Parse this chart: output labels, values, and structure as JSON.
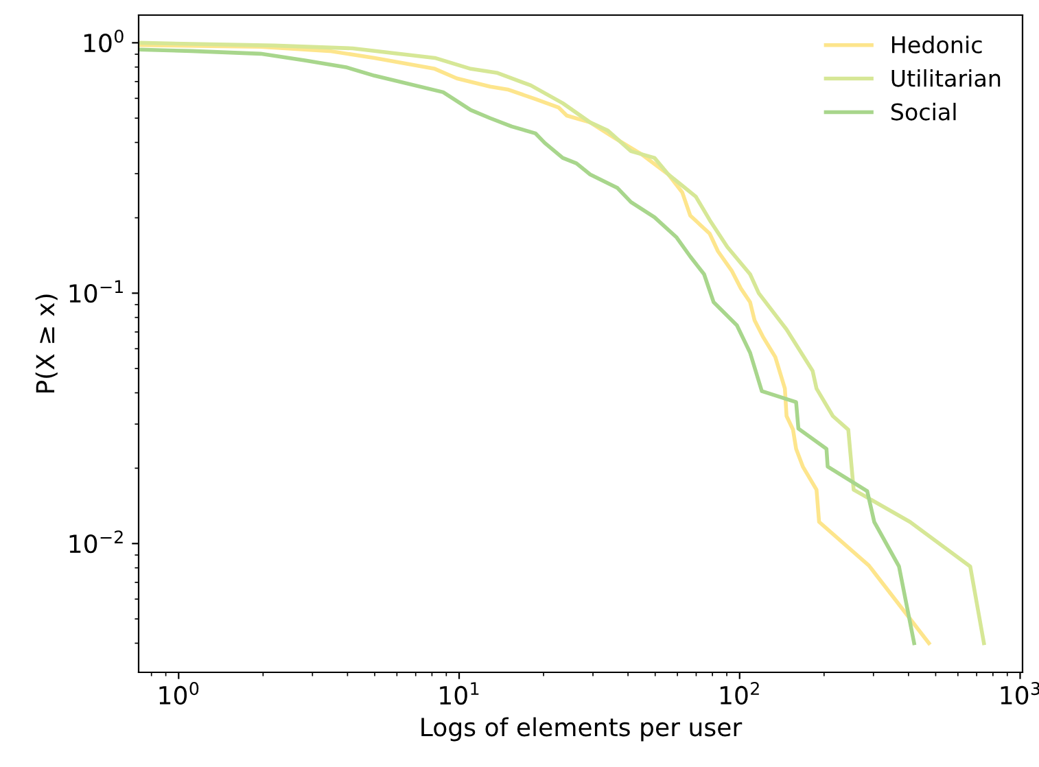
{
  "chart_data": {
    "type": "line",
    "xlabel": "Logs of elements per user",
    "ylabel": "P(X ≥ x)",
    "log": "xy",
    "grid": false,
    "legend": "top right",
    "marker": "none",
    "line_style": "solid",
    "xlim": [
      0.72,
      1020
    ],
    "ylim": [
      0.00306,
      1.29
    ],
    "xticks": [
      {
        "value": 1,
        "label": "10$^{0}$"
      },
      {
        "value": 10,
        "label": "10$^{1}$"
      },
      {
        "value": 100,
        "label": "10$^{2}$"
      },
      {
        "value": 1000,
        "label": "10$^{3}$"
      }
    ],
    "yticks": [
      {
        "value": 1,
        "label": "10$^{0}$"
      },
      {
        "value": 0.1,
        "label": "10$^{−1}$"
      },
      {
        "value": 0.01,
        "label": "10$^{−2}$"
      }
    ],
    "series": [
      {
        "name": "Hedonic",
        "color": "#fde58c",
        "x": [
          0.72,
          1.96,
          3.45,
          4.99,
          8.19,
          9.81,
          12.9,
          14.9,
          18.7,
          22.6,
          24.2,
          29.3,
          35.5,
          44.5,
          55.7,
          62.4,
          66.7,
          78.2,
          83.7,
          93.7,
          101,
          109,
          113,
          121,
          134,
          145,
          147,
          155,
          159,
          168,
          188,
          192,
          289,
          473
        ],
        "values": [
          0.979,
          0.963,
          0.927,
          0.87,
          0.787,
          0.721,
          0.668,
          0.651,
          0.596,
          0.552,
          0.512,
          0.481,
          0.419,
          0.36,
          0.298,
          0.253,
          0.204,
          0.173,
          0.147,
          0.123,
          0.1045,
          0.092,
          0.078,
          0.0671,
          0.0556,
          0.0416,
          0.0323,
          0.0285,
          0.0239,
          0.0203,
          0.0164,
          0.0122,
          0.00817,
          0.004
        ]
      },
      {
        "name": "Utilitarian",
        "color": "#d6e796",
        "x": [
          0.72,
          2.19,
          4.17,
          8.19,
          11.0,
          13.7,
          18.0,
          23.4,
          29.3,
          33.9,
          41.0,
          49.7,
          55.7,
          62.4,
          69.8,
          78.2,
          90.4,
          109,
          117,
          147,
          182,
          188,
          215,
          244,
          255,
          405,
          664,
          743
        ],
        "values": [
          1.0,
          0.975,
          0.95,
          0.87,
          0.787,
          0.758,
          0.676,
          0.574,
          0.481,
          0.446,
          0.369,
          0.347,
          0.298,
          0.269,
          0.243,
          0.196,
          0.153,
          0.119,
          0.1,
          0.0716,
          0.049,
          0.0416,
          0.0323,
          0.0285,
          0.0164,
          0.0122,
          0.0081,
          0.004
        ]
      },
      {
        "name": "Social",
        "color": "#a8d68c",
        "x": [
          0.72,
          1.11,
          1.96,
          2.84,
          3.98,
          4.99,
          8.77,
          11.0,
          12.9,
          15.4,
          18.7,
          20.2,
          23.4,
          26.2,
          29.3,
          36.7,
          41.0,
          49.7,
          59.6,
          66.7,
          74.7,
          80.8,
          97.8,
          109,
          120,
          159,
          162,
          204,
          206,
          285,
          302,
          370,
          419
        ],
        "values": [
          0.939,
          0.927,
          0.904,
          0.849,
          0.797,
          0.739,
          0.635,
          0.539,
          0.5,
          0.463,
          0.435,
          0.398,
          0.347,
          0.33,
          0.298,
          0.263,
          0.231,
          0.201,
          0.167,
          0.14,
          0.119,
          0.092,
          0.0744,
          0.0578,
          0.0406,
          0.0367,
          0.0288,
          0.0239,
          0.0203,
          0.0162,
          0.0122,
          0.0081,
          0.004
        ]
      }
    ]
  }
}
